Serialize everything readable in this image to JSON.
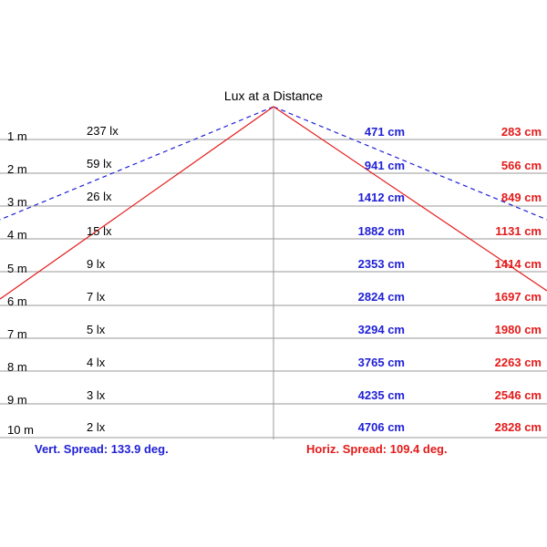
{
  "title": "Lux at a Distance",
  "rows": [
    {
      "distance": "1 m",
      "lux": "237 lx",
      "vertical": "471 cm",
      "horizontal": "283 cm"
    },
    {
      "distance": "2 m",
      "lux": "59 lx",
      "vertical": "941 cm",
      "horizontal": "566 cm"
    },
    {
      "distance": "3 m",
      "lux": "26 lx",
      "vertical": "1412 cm",
      "horizontal": "849 cm"
    },
    {
      "distance": "4 m",
      "lux": "15 lx",
      "vertical": "1882 cm",
      "horizontal": "1131 cm"
    },
    {
      "distance": "5 m",
      "lux": "9 lx",
      "vertical": "2353 cm",
      "horizontal": "1414 cm"
    },
    {
      "distance": "6 m",
      "lux": "7 lx",
      "vertical": "2824 cm",
      "horizontal": "1697 cm"
    },
    {
      "distance": "7 m",
      "lux": "5 lx",
      "vertical": "3294 cm",
      "horizontal": "1980 cm"
    },
    {
      "distance": "8 m",
      "lux": "4 lx",
      "vertical": "3765 cm",
      "horizontal": "2263 cm"
    },
    {
      "distance": "9 m",
      "lux": "3 lx",
      "vertical": "4235 cm",
      "horizontal": "2546 cm"
    },
    {
      "distance": "10 m",
      "lux": "2 lx",
      "vertical": "4706 cm",
      "horizontal": "2828 cm"
    }
  ],
  "vertical_spread": "Vert. Spread: 133.9 deg.",
  "horizontal_spread": "Horiz. Spread: 109.4 deg.",
  "colors": {
    "vertical": "#1f1fd6",
    "horizontal": "#e51a1a",
    "grid": "#9a9a9a",
    "text": "#000000"
  }
}
